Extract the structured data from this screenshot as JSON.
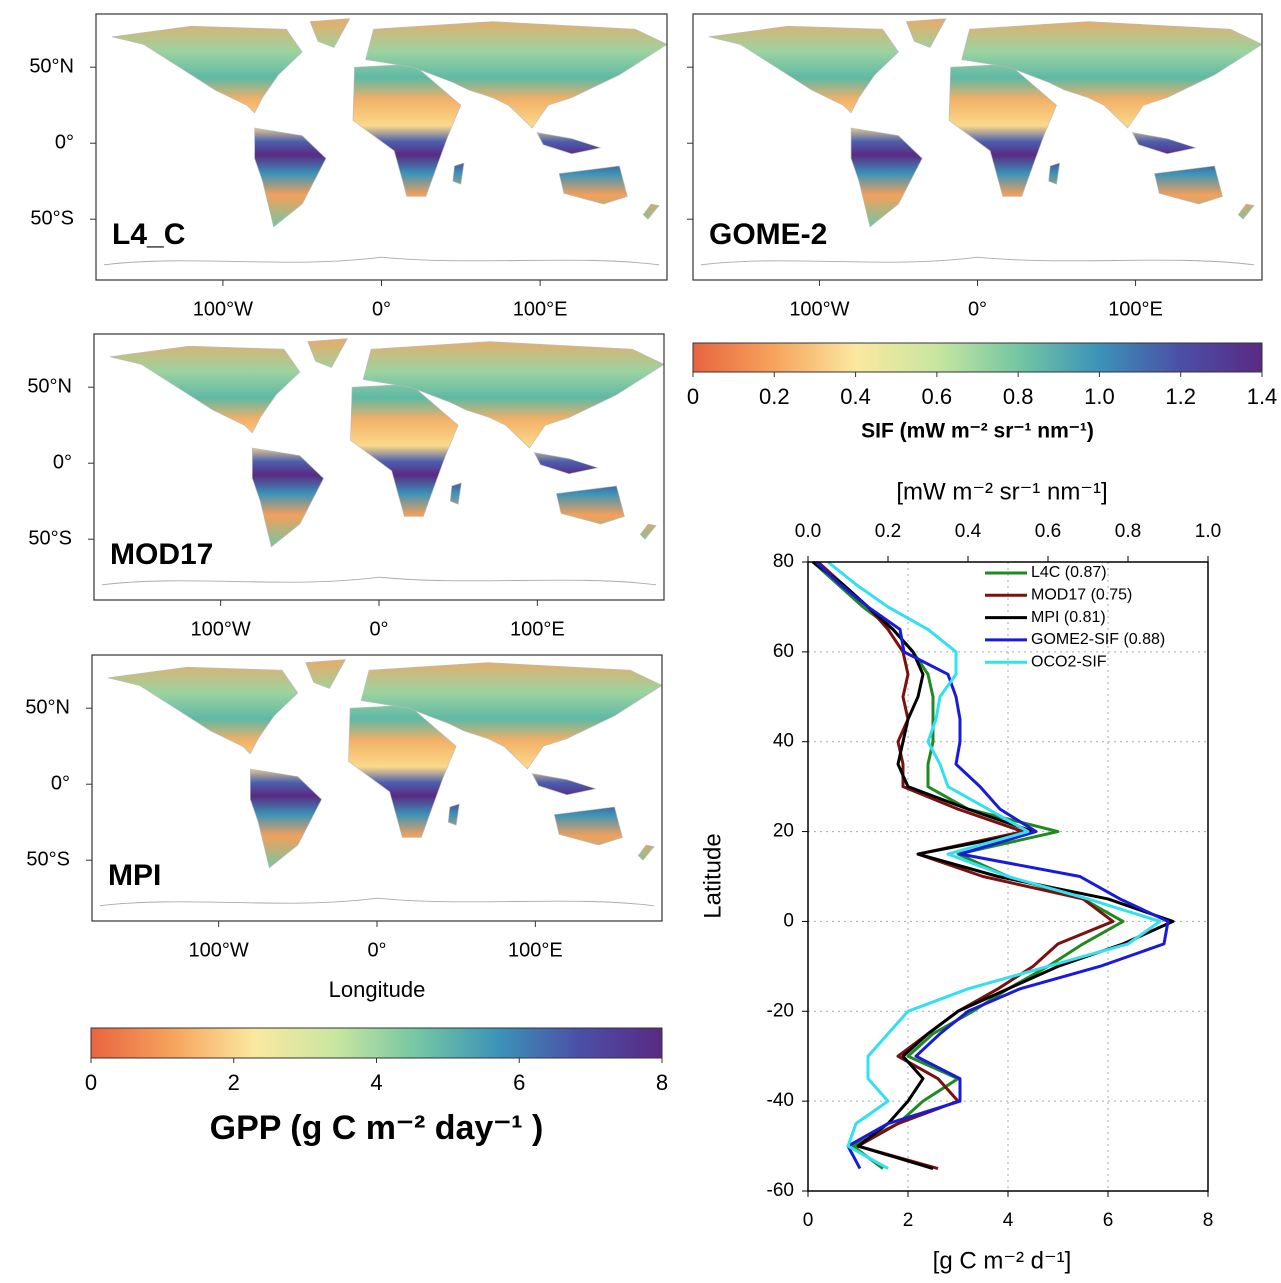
{
  "chart_data": [
    {
      "type": "map",
      "panels": [
        {
          "label": "L4_C"
        },
        {
          "label": "GOME-2"
        },
        {
          "label": "MOD17"
        },
        {
          "label": "MPI"
        }
      ],
      "xlim": [
        -180,
        180
      ],
      "ylim": [
        -90,
        85
      ],
      "yticks": [
        {
          "value": 50,
          "label": "50°N"
        },
        {
          "value": 0,
          "label": "0°"
        },
        {
          "value": -50,
          "label": "50°S"
        }
      ],
      "xticks": [
        {
          "value": -100,
          "label": "100°W"
        },
        {
          "value": 0,
          "label": "0°"
        },
        {
          "value": 100,
          "label": "100°E"
        }
      ],
      "xlabel": "Longitude"
    },
    {
      "type": "colorbar",
      "title": "SIF (mW m⁻² sr⁻¹ nm⁻¹)",
      "xlim": [
        0,
        1.4
      ],
      "xticks": [
        0,
        0.2,
        0.4,
        0.6,
        0.8,
        {
          "value": 1,
          "label": "1.0"
        },
        1.2,
        1.4
      ],
      "colors": [
        "#e8643f",
        "#f6a35c",
        "#fbe8a0",
        "#c8e6a0",
        "#74c6a3",
        "#3b93b8",
        "#4b4fa6",
        "#5a2a84"
      ]
    },
    {
      "type": "colorbar",
      "title": "GPP (g C m⁻² day⁻¹ )",
      "xlim": [
        0,
        8
      ],
      "xticks": [
        0,
        2,
        4,
        6,
        8
      ],
      "colors": [
        "#e8643f",
        "#f6a35c",
        "#fbe8a0",
        "#c8e6a0",
        "#74c6a3",
        "#3b93b8",
        "#4b4fa6",
        "#5a2a84"
      ]
    },
    {
      "type": "line",
      "ylabel": "Latitude",
      "xlabel": "[g C m⁻² d⁻¹]",
      "x2label": "[mW m⁻² sr⁻¹ nm⁻¹]",
      "ylim": [
        -60,
        80
      ],
      "yticks": [
        -60,
        -40,
        -20,
        0,
        20,
        40,
        60,
        80
      ],
      "xlim": [
        0,
        8
      ],
      "xticks": [
        0,
        2,
        4,
        6,
        8
      ],
      "x2lim": [
        0,
        1
      ],
      "x2ticks": [
        {
          "value": 0,
          "label": "0.0"
        },
        0.2,
        0.4,
        0.6,
        0.8,
        {
          "value": 1,
          "label": "1.0"
        }
      ],
      "grid": true,
      "y": [
        80,
        75,
        70,
        65,
        60,
        55,
        50,
        45,
        40,
        35,
        30,
        25,
        20,
        15,
        10,
        5,
        0,
        -5,
        -10,
        -15,
        -20,
        -25,
        -30,
        -35,
        -40,
        -45,
        -50,
        -55
      ],
      "series": [
        {
          "name": "L4C (0.87)",
          "color": "#1f8a1f",
          "values": [
            0.1,
            0.6,
            1.1,
            1.7,
            2.1,
            2.4,
            2.5,
            2.5,
            2.5,
            2.4,
            2.4,
            3.2,
            5.0,
            3.0,
            4.0,
            5.5,
            6.3,
            5.5,
            4.8,
            4.0,
            3.3,
            2.5,
            2.0,
            3.0,
            2.3,
            1.8,
            0.9,
            1.5
          ]
        },
        {
          "name": "MOD17 (0.75)",
          "color": "#7a1010",
          "values": [
            0.2,
            0.7,
            1.2,
            1.6,
            1.9,
            2.0,
            1.9,
            2.0,
            1.8,
            1.9,
            1.9,
            3.0,
            4.3,
            2.2,
            3.5,
            5.5,
            6.1,
            5.0,
            4.5,
            3.8,
            3.0,
            2.4,
            1.8,
            2.6,
            3.0,
            1.8,
            1.0,
            2.6
          ]
        },
        {
          "name": "MPI (0.81)",
          "color": "#000000",
          "values": [
            0.1,
            0.7,
            1.2,
            1.7,
            2.1,
            2.3,
            2.2,
            2.0,
            1.9,
            1.8,
            2.0,
            3.2,
            4.5,
            2.2,
            3.8,
            6.0,
            7.3,
            6.3,
            5.0,
            4.0,
            3.0,
            2.4,
            1.9,
            2.3,
            2.0,
            1.6,
            1.0,
            2.5
          ]
        },
        {
          "name": "GOME2-SIF (0.88)",
          "color": "#1a1adc",
          "axis": "x2",
          "values": [
            0.02,
            0.08,
            0.15,
            0.23,
            0.24,
            0.35,
            0.37,
            0.38,
            0.38,
            0.37,
            0.43,
            0.48,
            0.57,
            0.38,
            0.68,
            0.78,
            0.9,
            0.89,
            0.73,
            0.53,
            0.4,
            0.33,
            0.27,
            0.38,
            0.38,
            0.2,
            0.1,
            0.13
          ]
        },
        {
          "name": "OCO2-SIF",
          "color": "#33e0f0",
          "axis": "x2",
          "values": [
            0.05,
            0.12,
            0.2,
            0.3,
            0.37,
            0.37,
            0.33,
            0.32,
            0.3,
            0.33,
            0.35,
            0.45,
            0.55,
            0.35,
            0.5,
            0.7,
            0.88,
            0.8,
            0.6,
            0.4,
            0.25,
            0.2,
            0.15,
            0.15,
            0.2,
            0.12,
            0.1,
            0.2
          ]
        }
      ]
    }
  ]
}
